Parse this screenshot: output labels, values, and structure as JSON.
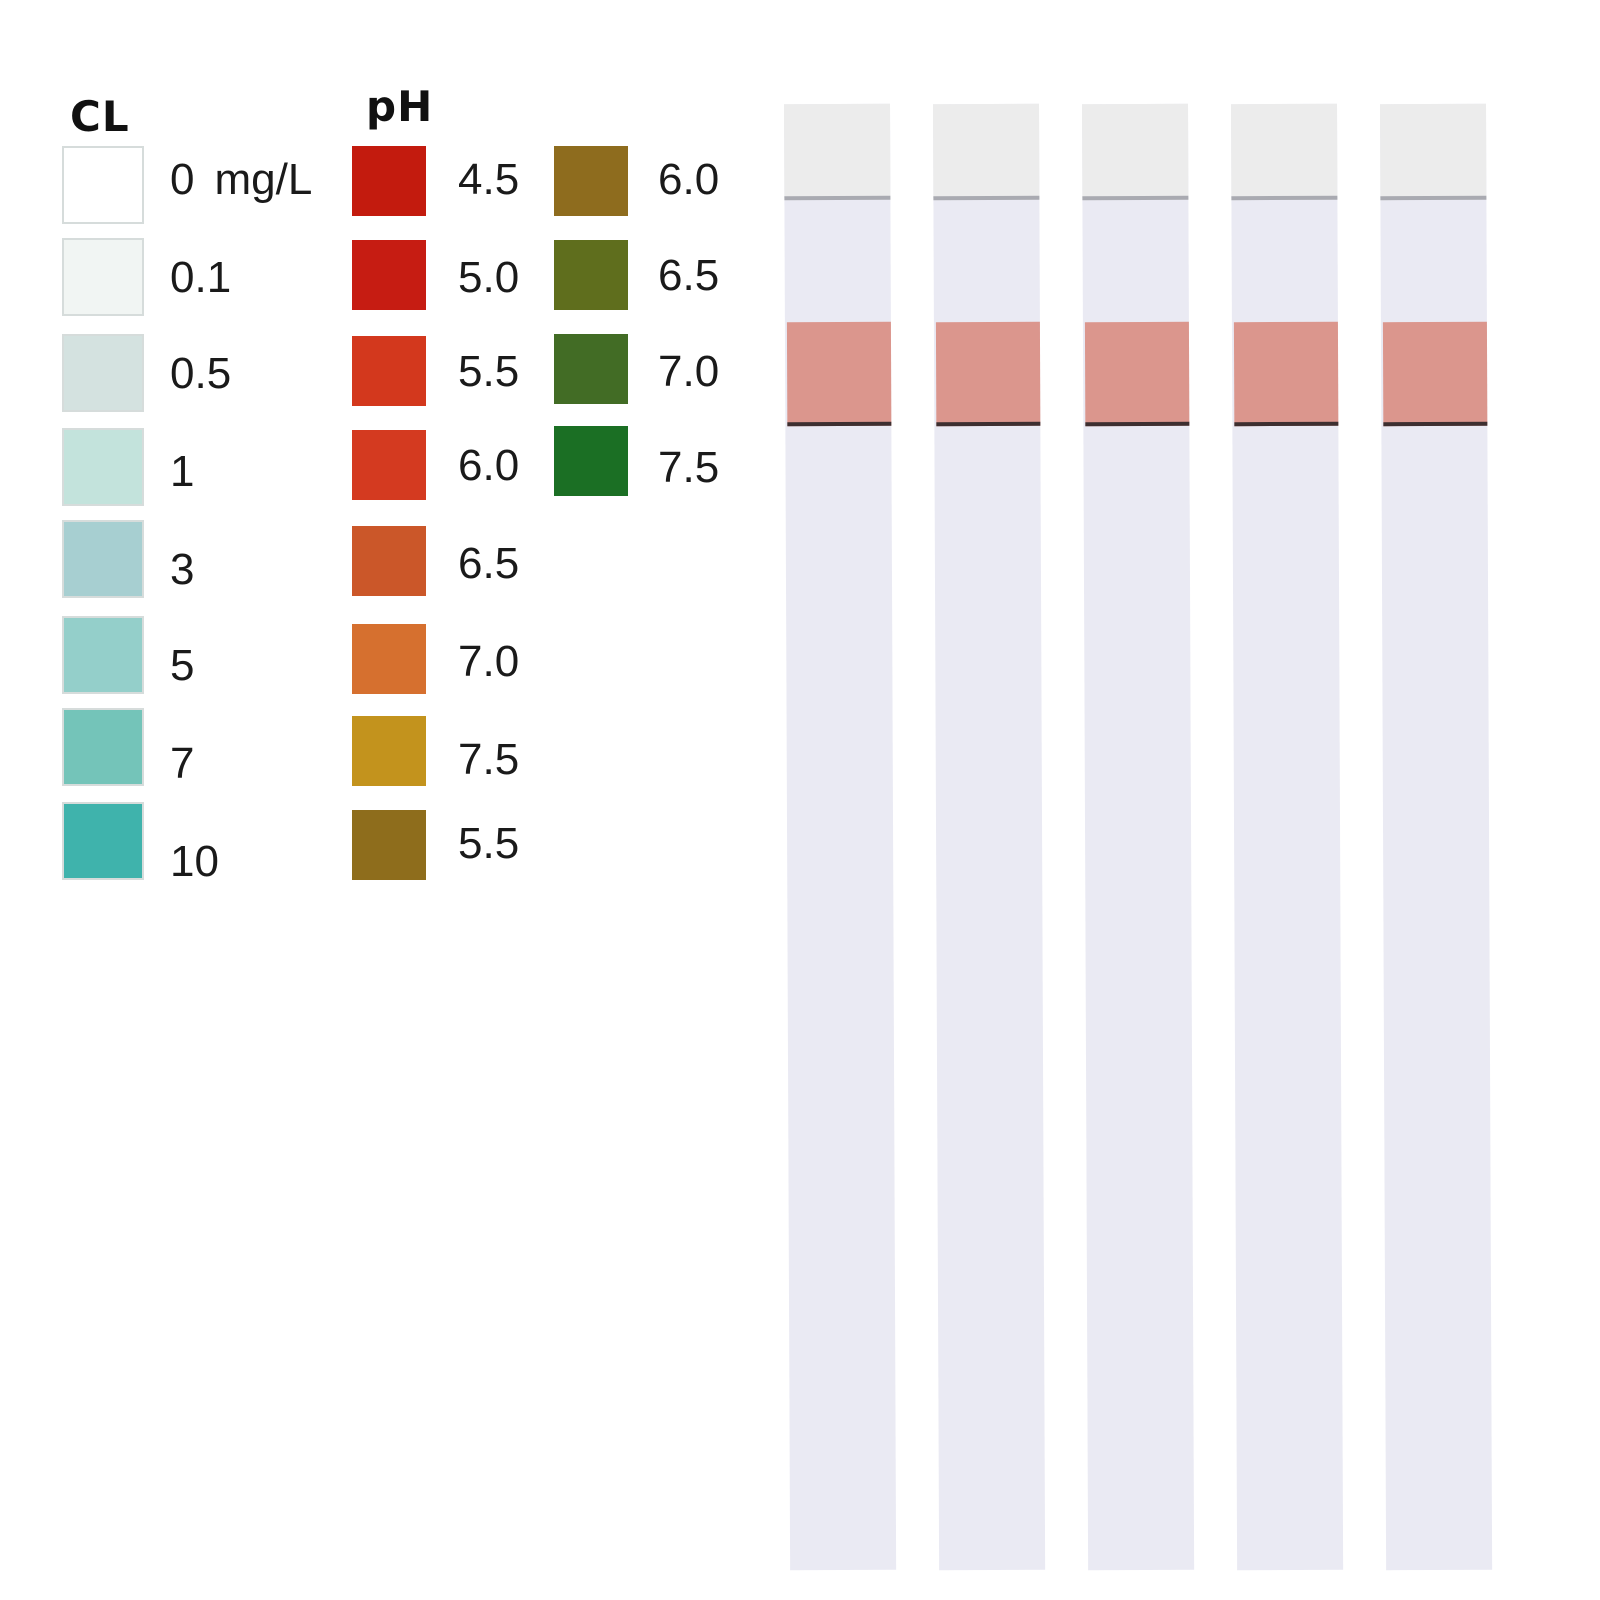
{
  "chlorine": {
    "heading": "CL",
    "unit": "mg/L",
    "scale": [
      {
        "label": "0",
        "color": "#ffffff"
      },
      {
        "label": "0.1",
        "color": "#f1f5f3"
      },
      {
        "label": "0.5",
        "color": "#d4e2e0"
      },
      {
        "label": "1",
        "color": "#c3e3dc"
      },
      {
        "label": "3",
        "color": "#a7cfd1"
      },
      {
        "label": "5",
        "color": "#94cfca"
      },
      {
        "label": "7",
        "color": "#74c4b9"
      },
      {
        "label": "10",
        "color": "#3fb3ac"
      }
    ]
  },
  "ph": {
    "heading": "pH",
    "scale_a": [
      {
        "label": "4.5",
        "color": "#c31b0e"
      },
      {
        "label": "5.0",
        "color": "#c61c12"
      },
      {
        "label": "5.5",
        "color": "#d3381d"
      },
      {
        "label": "6.0",
        "color": "#d43a20"
      },
      {
        "label": "6.5",
        "color": "#cb5729"
      },
      {
        "label": "7.0",
        "color": "#d6702f"
      },
      {
        "label": "7.5",
        "color": "#c3931d"
      },
      {
        "label": "5.5",
        "color": "#8e6d1c"
      }
    ],
    "scale_b": [
      {
        "label": "6.0",
        "color": "#8e6c1e"
      },
      {
        "label": "6.5",
        "color": "#5f6e1d"
      },
      {
        "label": "7.0",
        "color": "#426c25"
      },
      {
        "label": "7.5",
        "color": "#1b6f24"
      }
    ]
  },
  "test_strips": {
    "count": 5,
    "cap_color": "#ececec",
    "body_color": "#eaeaf3",
    "pad_color": "#db968d"
  }
}
